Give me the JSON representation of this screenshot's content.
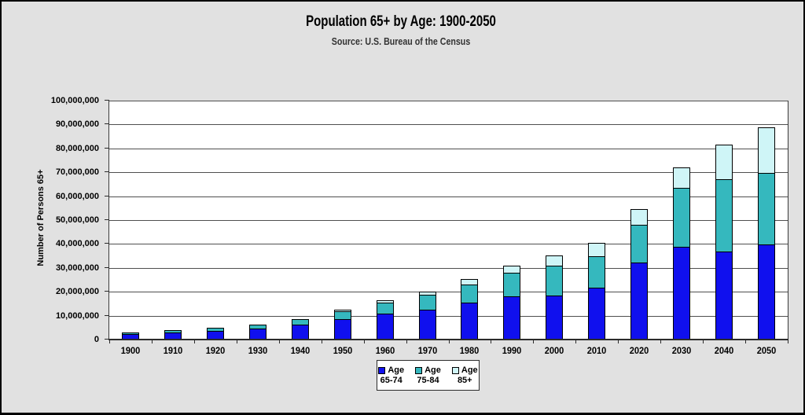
{
  "title": "Population 65+ by Age: 1900-2050",
  "subtitle": "Source: U.S. Bureau of the Census",
  "chart_data": {
    "type": "bar",
    "stacked": true,
    "title": "Population 65+ by Age: 1900-2050",
    "subtitle": "Source: U.S. Bureau of the Census",
    "xlabel": "",
    "ylabel": "Number of Persons 65+",
    "ylim": [
      0,
      100000000
    ],
    "ytick_step": 10000000,
    "ytick_labels": [
      "0",
      "10,000,000",
      "20,000,000",
      "30,000,000",
      "40,000,000",
      "50,000,000",
      "60,000,000",
      "70,000,000",
      "80,000,000",
      "90,000,000",
      "100,000,000"
    ],
    "grid": true,
    "legend_position": "bottom-center",
    "categories": [
      "1900",
      "1910",
      "1920",
      "1930",
      "1940",
      "1950",
      "1960",
      "1970",
      "1980",
      "1990",
      "2000",
      "2010",
      "2020",
      "2030",
      "2040",
      "2050"
    ],
    "series": [
      {
        "name": "Age 65-74",
        "legend_line1": "Age",
        "legend_line2": "65-74",
        "color": "#1010ee",
        "values": [
          2200000,
          2900000,
          3500000,
          4700000,
          6400000,
          8400000,
          11000000,
          12400000,
          15600000,
          18100000,
          18400000,
          21700000,
          32300000,
          38800000,
          36800000,
          39700000
        ]
      },
      {
        "name": "Age 75-84",
        "legend_line1": "Age",
        "legend_line2": "75-84",
        "color": "#35b8be",
        "values": [
          800000,
          1000000,
          1300000,
          1600000,
          2300000,
          3300000,
          4600000,
          6100000,
          7700000,
          10000000,
          12400000,
          13100000,
          15900000,
          24600000,
          30100000,
          29900000
        ]
      },
      {
        "name": "Age 85+",
        "legend_line1": "Age",
        "legend_line2": "85+",
        "color": "#cff5f7",
        "values": [
          100000,
          200000,
          200000,
          300000,
          400000,
          600000,
          900000,
          1400000,
          2200000,
          3000000,
          4200000,
          5500000,
          6600000,
          8700000,
          14600000,
          19200000
        ]
      }
    ]
  },
  "colors": {
    "background": "#e1e1e1",
    "plot_background": "#ffffff",
    "border": "#000000",
    "gridline": "#4f4f4f",
    "series_65_74": "#1010ee",
    "series_75_84": "#35b8be",
    "series_85_plus": "#cff5f7"
  }
}
